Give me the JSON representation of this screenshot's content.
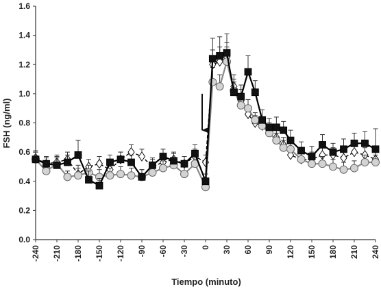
{
  "chart_data": {
    "type": "line",
    "title": "",
    "xlabel": "Tiempo (minuto)",
    "ylabel": "FSH (ng/ml)",
    "xlim": [
      -240,
      240
    ],
    "ylim": [
      0.0,
      1.6
    ],
    "x_ticks": [
      -240,
      -210,
      -180,
      -150,
      -120,
      -90,
      -60,
      -30,
      0,
      30,
      60,
      90,
      120,
      150,
      180,
      210,
      240
    ],
    "x_tick_labels": [
      "-240",
      "-210",
      "-180",
      "-150",
      "-120",
      "-90",
      "-60",
      "-30",
      "0",
      "30",
      "60",
      "90",
      "120",
      "150",
      "180",
      "210",
      "240"
    ],
    "y_ticks": [
      0.0,
      0.2,
      0.4,
      0.6,
      0.8,
      1.0,
      1.2,
      1.4,
      1.6
    ],
    "y_tick_labels": [
      "0.0",
      "0.2",
      "0.4",
      "0.6",
      "0.8",
      "1.0",
      "1.2",
      "1.4",
      "1.6"
    ],
    "grid": false,
    "legend": "none",
    "annotation": {
      "type": "arrow-down",
      "x": 0,
      "y_from": 1.0,
      "y_to": 0.75
    },
    "series": [
      {
        "marker": "diamond-open",
        "line_style": "dashed",
        "color": "#000000",
        "x": [
          -240,
          -225,
          -210,
          -195,
          -180,
          -165,
          -150,
          -135,
          -120,
          -105,
          -90,
          -75,
          -60,
          -45,
          -30,
          -15,
          0,
          10,
          20,
          30,
          40,
          50,
          60,
          70,
          80,
          90,
          100,
          110,
          120,
          135,
          150,
          165,
          180,
          195,
          210,
          225,
          240
        ],
        "y": [
          0.56,
          0.52,
          0.53,
          0.55,
          0.45,
          0.5,
          0.52,
          0.48,
          0.55,
          0.6,
          0.57,
          0.5,
          0.53,
          0.55,
          0.52,
          0.57,
          0.53,
          1.2,
          1.22,
          1.25,
          1.05,
          0.95,
          0.86,
          0.8,
          0.78,
          0.75,
          0.7,
          0.65,
          0.58,
          0.55,
          0.55,
          0.58,
          0.58,
          0.56,
          0.6,
          0.58,
          0.55
        ],
        "error": [
          0.05,
          0.04,
          0.05,
          0.05,
          0.06,
          0.05,
          0.05,
          0.05,
          0.05,
          0.05,
          0.05,
          0.05,
          0.05,
          0.05,
          0.05,
          0.05,
          0.05,
          0.1,
          0.1,
          0.1,
          0.08,
          0.08,
          0.06,
          0.05,
          0.05,
          0.05,
          0.05,
          0.05,
          0.05,
          0.05,
          0.05,
          0.05,
          0.05,
          0.05,
          0.05,
          0.05,
          0.05
        ]
      },
      {
        "marker": "circle-filled-gray",
        "line_style": "solid",
        "color": "#888888",
        "x": [
          -240,
          -225,
          -210,
          -195,
          -180,
          -165,
          -150,
          -135,
          -120,
          -105,
          -90,
          -75,
          -60,
          -45,
          -30,
          -15,
          0,
          10,
          20,
          30,
          40,
          50,
          60,
          70,
          80,
          90,
          100,
          110,
          120,
          135,
          150,
          165,
          180,
          195,
          210,
          225,
          240
        ],
        "y": [
          0.55,
          0.47,
          0.52,
          0.43,
          0.44,
          0.46,
          0.43,
          0.44,
          0.45,
          0.44,
          0.43,
          0.46,
          0.49,
          0.51,
          0.45,
          0.52,
          0.36,
          1.08,
          1.05,
          1.22,
          1.02,
          0.92,
          0.9,
          0.82,
          0.78,
          0.73,
          0.68,
          0.63,
          0.62,
          0.55,
          0.52,
          0.52,
          0.5,
          0.48,
          0.49,
          0.53,
          0.53
        ],
        "error": [
          0.05,
          0.04,
          0.05,
          0.04,
          0.05,
          0.05,
          0.05,
          0.05,
          0.05,
          0.05,
          0.05,
          0.05,
          0.05,
          0.05,
          0.05,
          0.05,
          0.04,
          0.1,
          0.08,
          0.1,
          0.08,
          0.08,
          0.06,
          0.05,
          0.05,
          0.05,
          0.05,
          0.05,
          0.05,
          0.05,
          0.05,
          0.05,
          0.05,
          0.05,
          0.05,
          0.05,
          0.05
        ]
      },
      {
        "marker": "square-filled",
        "line_style": "solid",
        "color": "#000000",
        "x": [
          -240,
          -225,
          -210,
          -195,
          -180,
          -165,
          -150,
          -135,
          -120,
          -105,
          -90,
          -75,
          -60,
          -45,
          -30,
          -15,
          0,
          10,
          20,
          30,
          40,
          50,
          60,
          70,
          80,
          90,
          100,
          110,
          120,
          135,
          150,
          165,
          180,
          195,
          210,
          225,
          240
        ],
        "y": [
          0.55,
          0.52,
          0.51,
          0.53,
          0.58,
          0.41,
          0.37,
          0.53,
          0.55,
          0.53,
          0.43,
          0.51,
          0.57,
          0.54,
          0.52,
          0.59,
          0.4,
          1.24,
          1.26,
          1.28,
          1.01,
          0.98,
          1.15,
          1.01,
          0.82,
          0.77,
          0.77,
          0.75,
          0.68,
          0.61,
          0.57,
          0.65,
          0.6,
          0.62,
          0.66,
          0.66,
          0.62
        ],
        "error": [
          0.05,
          0.05,
          0.05,
          0.05,
          0.1,
          0.06,
          0.05,
          0.05,
          0.05,
          0.05,
          0.05,
          0.05,
          0.05,
          0.05,
          0.05,
          0.06,
          0.05,
          0.14,
          0.13,
          0.13,
          0.07,
          0.08,
          0.11,
          0.08,
          0.07,
          0.06,
          0.07,
          0.06,
          0.07,
          0.06,
          0.07,
          0.07,
          0.06,
          0.07,
          0.07,
          0.08,
          0.14
        ]
      }
    ]
  }
}
